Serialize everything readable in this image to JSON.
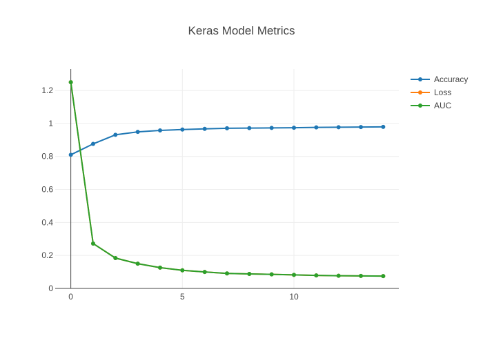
{
  "chart_data": {
    "type": "line",
    "title": "Keras Model Metrics",
    "xlabel": "",
    "ylabel": "",
    "xlim": [
      -0.7,
      14.7
    ],
    "ylim": [
      0,
      1.33
    ],
    "x_ticks": [
      0,
      5,
      10
    ],
    "y_ticks": [
      0,
      0.2,
      0.4,
      0.6,
      0.8,
      1,
      1.2
    ],
    "grid": true,
    "legend_position": "top-right",
    "x": [
      0,
      1,
      2,
      3,
      4,
      5,
      6,
      7,
      8,
      9,
      10,
      11,
      12,
      13,
      14
    ],
    "series": [
      {
        "name": "Accuracy",
        "color": "#1f77b4",
        "values": [
          0.81,
          0.876,
          0.931,
          0.949,
          0.958,
          0.963,
          0.967,
          0.971,
          0.972,
          0.973,
          0.974,
          0.976,
          0.977,
          0.978,
          0.979
        ]
      },
      {
        "name": "Loss",
        "color": "#ff7f0e",
        "values": [
          1.25,
          0.272,
          0.184,
          0.15,
          0.126,
          0.11,
          0.1,
          0.091,
          0.088,
          0.085,
          0.082,
          0.079,
          0.077,
          0.076,
          0.075
        ]
      },
      {
        "name": "AUC",
        "color": "#2ca02c",
        "values": [
          1.25,
          0.272,
          0.184,
          0.15,
          0.126,
          0.11,
          0.1,
          0.091,
          0.088,
          0.085,
          0.082,
          0.079,
          0.077,
          0.076,
          0.075
        ]
      }
    ]
  }
}
